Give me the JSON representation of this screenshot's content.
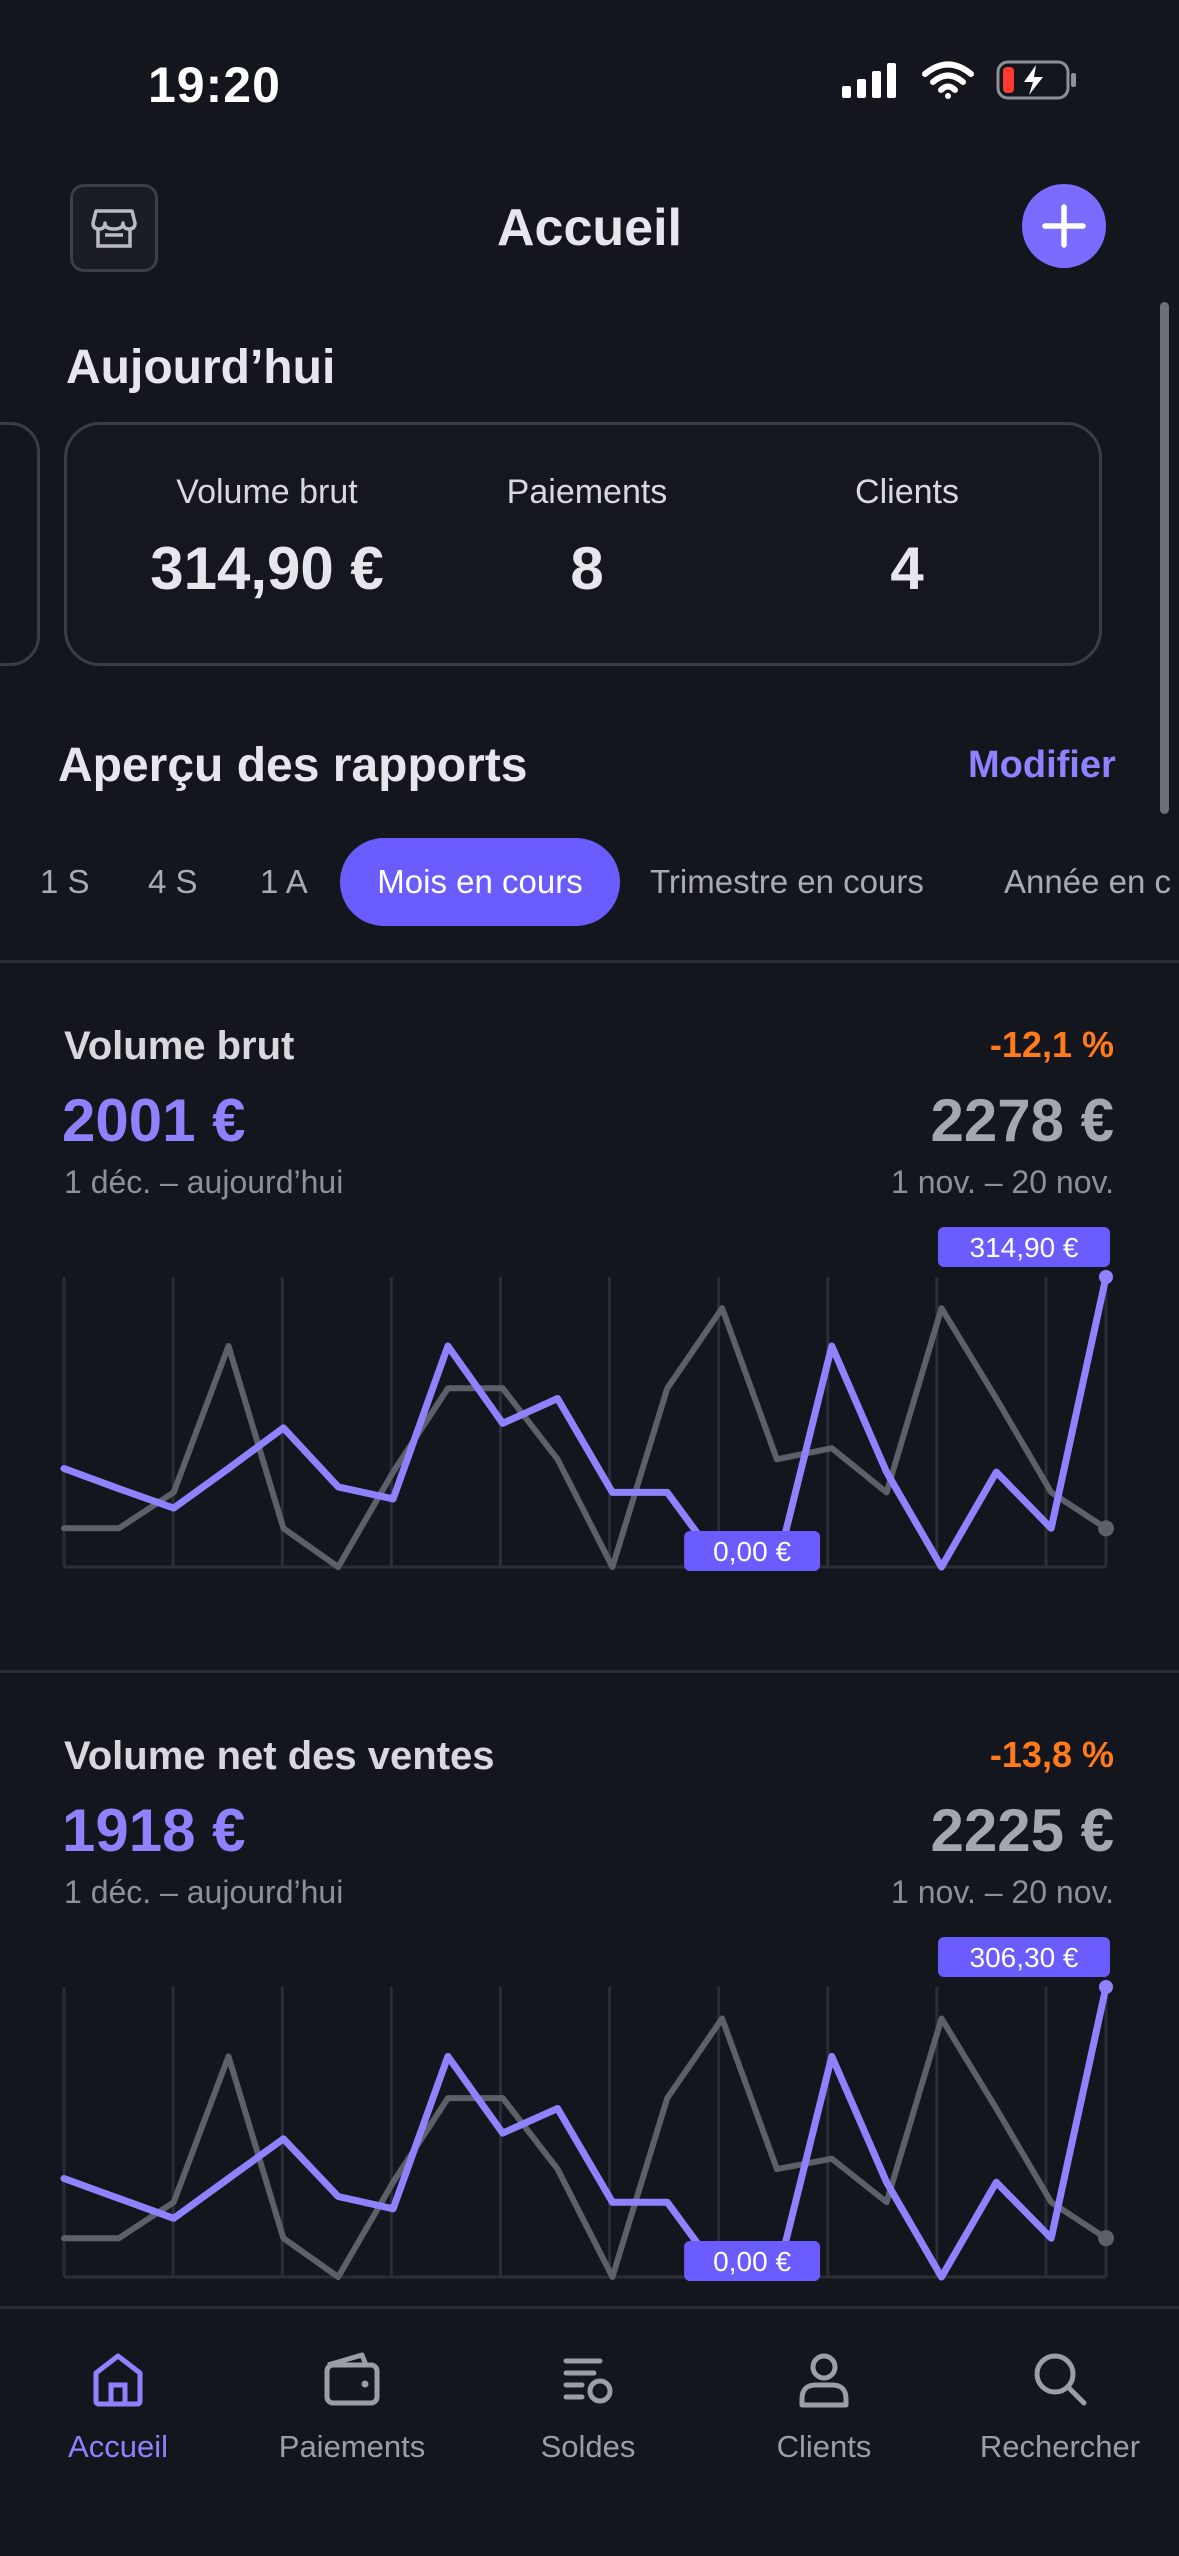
{
  "status_bar": {
    "time": "19:20"
  },
  "header": {
    "title": "Accueil"
  },
  "today": {
    "title": "Aujourd’hui",
    "stats": [
      {
        "label": "Volume brut",
        "value": "314,90 €"
      },
      {
        "label": "Paiements",
        "value": "8"
      },
      {
        "label": "Clients",
        "value": "4"
      }
    ]
  },
  "reports": {
    "title": "Aperçu des rapports",
    "modify_label": "Modifier",
    "tabs": [
      "1 S",
      "4 S",
      "1 A",
      "Mois en cours",
      "Trimestre en cours",
      "Année en c"
    ],
    "active_tab": "Mois en cours"
  },
  "colors": {
    "accent": "#7b6bff",
    "negative": "#ff7a1a",
    "current_series": "#8f82ff",
    "previous_series": "#5c6069"
  },
  "chart_data": [
    {
      "type": "line",
      "title": "Volume brut",
      "change": "-12,1 %",
      "current_total": "2001 €",
      "previous_total": "2278 €",
      "current_range": "1 déc. – aujourd’hui",
      "previous_range": "1 nov. – 20 nov.",
      "max_label": "314,90 €",
      "min_label": "0,00 €",
      "ylim": [
        0,
        314.9
      ],
      "series": [
        {
          "values": [
            107,
            85,
            64,
            107,
            151,
            87,
            74,
            240,
            156,
            183,
            81,
            81,
            0,
            0,
            240,
            103,
            0,
            103,
            42,
            314.9
          ]
        },
        {
          "values": [
            42,
            42,
            81,
            240,
            42,
            0,
            103,
            194,
            194,
            117,
            0,
            194,
            281,
            117,
            129,
            81,
            281,
            183,
            81,
            42
          ]
        }
      ]
    },
    {
      "type": "line",
      "title": "Volume net des ventes",
      "change": "-13,8 %",
      "current_total": "1918 €",
      "previous_total": "2225 €",
      "current_range": "1 déc. – aujourd’hui",
      "previous_range": "1 nov. – 20 nov.",
      "max_label": "306,30 €",
      "min_label": "0,00 €",
      "ylim": [
        0,
        306.3
      ],
      "series": [
        {
          "values": [
            104,
            83,
            62,
            104,
            146,
            85,
            72,
            233,
            152,
            178,
            79,
            79,
            0,
            0,
            233,
            100,
            0,
            100,
            41,
            306.3
          ]
        },
        {
          "values": [
            41,
            41,
            79,
            233,
            41,
            0,
            100,
            189,
            189,
            114,
            0,
            189,
            273,
            114,
            125,
            79,
            273,
            178,
            79,
            41
          ]
        }
      ]
    }
  ],
  "bottom_nav": {
    "items": [
      {
        "label": "Accueil",
        "icon": "home-icon",
        "active": true
      },
      {
        "label": "Paiements",
        "icon": "wallet-icon",
        "active": false
      },
      {
        "label": "Soldes",
        "icon": "balance-icon",
        "active": false
      },
      {
        "label": "Clients",
        "icon": "person-icon",
        "active": false
      },
      {
        "label": "Rechercher",
        "icon": "search-icon",
        "active": false
      }
    ]
  }
}
